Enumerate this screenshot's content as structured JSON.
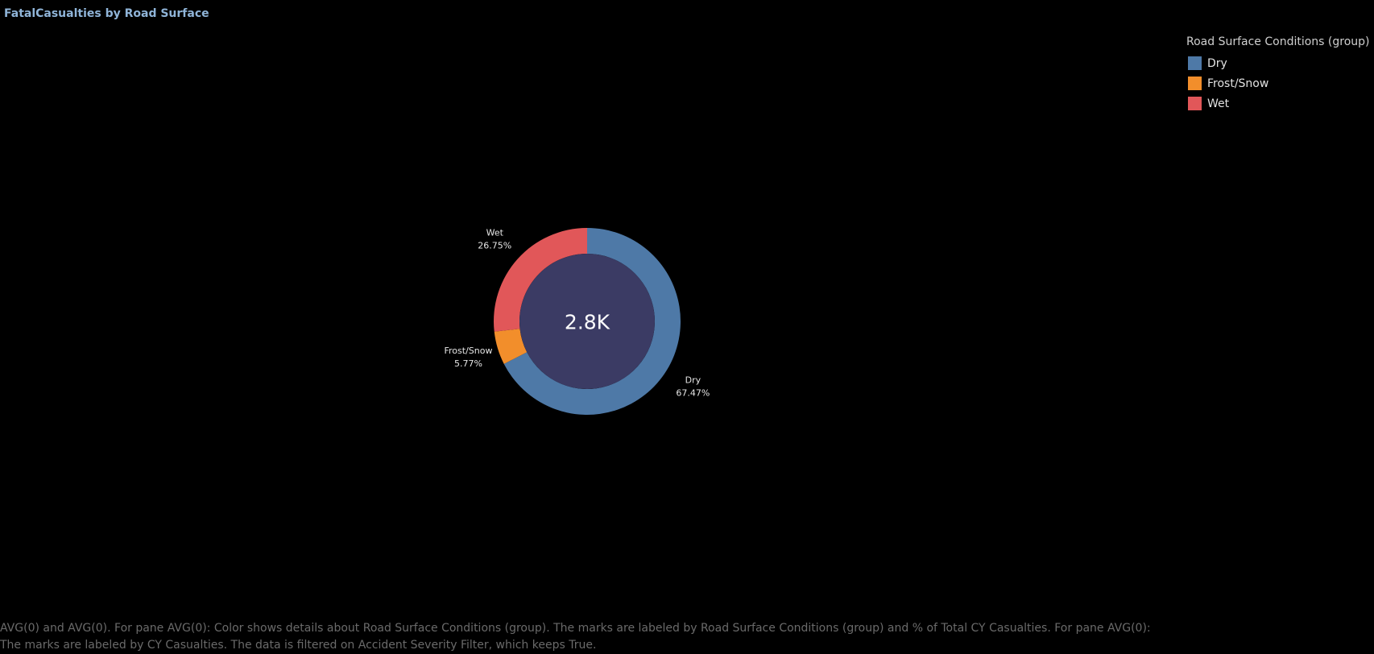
{
  "title": "FatalCasualties by Road Surface",
  "legend": {
    "title": "Road Surface Conditions (group)",
    "items": [
      {
        "label": "Dry",
        "color": "#4e79a7"
      },
      {
        "label": "Frost/Snow",
        "color": "#f28e2b"
      },
      {
        "label": "Wet",
        "color": "#e15759"
      }
    ]
  },
  "chart_data": {
    "type": "pie",
    "variant": "donut",
    "center_label": "2.8K",
    "center_color": "#3b3b64",
    "categories": [
      "Dry",
      "Frost/Snow",
      "Wet"
    ],
    "values": [
      67.47,
      5.77,
      26.75
    ],
    "value_labels": [
      "67.47%",
      "5.77%",
      "26.75%"
    ],
    "colors": [
      "#4e79a7",
      "#f28e2b",
      "#e15759"
    ],
    "legend_position": "top-right"
  },
  "footnote": {
    "line1": "AVG(0) and AVG(0).  For pane AVG(0):  Color shows details about Road Surface Conditions (group).  The marks are labeled by Road Surface Conditions (group) and % of Total CY Casualties.  For pane AVG(0):",
    "line2": "The marks are labeled by CY Casualties. The data is filtered on Accident Severity Filter, which keeps True."
  }
}
